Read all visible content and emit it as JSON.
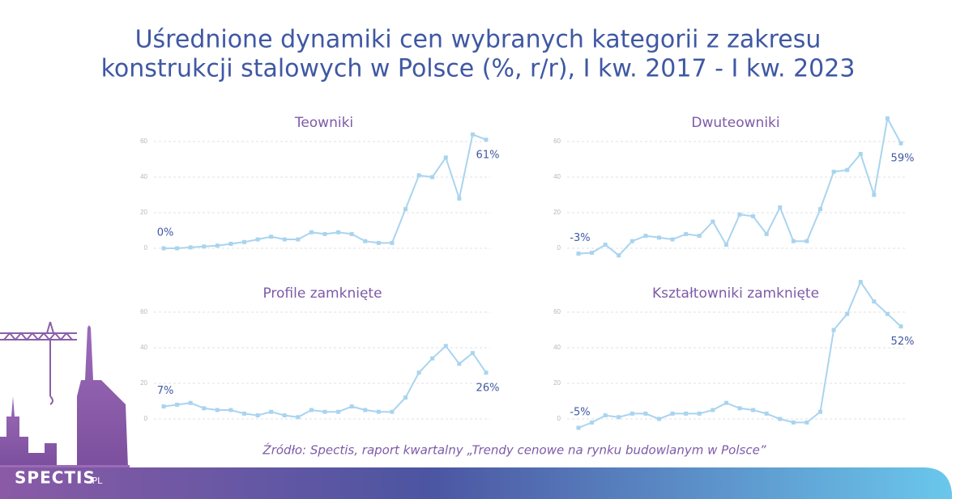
{
  "title": [
    "Uśrednione dynamiki cen wybranych kategorii z zakresu",
    "konstrukcji stalowych w Polsce (%, r/r), I kw. 2017 - I kw. 2023"
  ],
  "source": "Źródło: Spectis, raport kwartalny „Trendy cenowe na rynku budowlanym w Polsce”",
  "logo": "SPECTIS",
  "logo_domain": ".PL",
  "chart_data": [
    {
      "type": "line",
      "title": "Teowniki",
      "color": "#a9d4ef",
      "grid": true,
      "values": [
        0,
        0,
        0.5,
        1,
        1.5,
        2.5,
        3.5,
        5,
        6.5,
        5,
        5,
        9,
        8,
        9,
        8,
        4,
        3,
        3,
        22,
        41,
        40,
        51,
        28,
        64,
        61
      ],
      "value_labels": [
        "0%",
        null,
        null,
        null,
        null,
        null,
        null,
        null,
        null,
        null,
        null,
        null,
        null,
        null,
        null,
        null,
        null,
        null,
        null,
        null,
        null,
        null,
        null,
        null,
        "61%"
      ],
      "ylim": [
        -6,
        66
      ],
      "yticks": [
        0,
        20,
        40,
        60
      ]
    },
    {
      "type": "line",
      "title": "Dwuteowniki",
      "color": "#a9d4ef",
      "grid": true,
      "values": [
        -3,
        -2.5,
        2,
        -4,
        4,
        7,
        6,
        5,
        8,
        7,
        15,
        2,
        19,
        18,
        8,
        23,
        4,
        4,
        22,
        43,
        44,
        53,
        30,
        73,
        59
      ],
      "value_labels": [
        "-3%",
        null,
        null,
        null,
        null,
        null,
        null,
        null,
        null,
        null,
        null,
        null,
        null,
        null,
        null,
        null,
        null,
        null,
        null,
        null,
        null,
        null,
        null,
        null,
        "59%"
      ],
      "ylim": [
        -6,
        75
      ],
      "yticks": [
        0,
        20,
        40,
        60
      ]
    },
    {
      "type": "line",
      "title": "Profile zamknięte",
      "color": "#a9d4ef",
      "grid": true,
      "values": [
        7,
        8,
        9,
        6,
        5,
        5,
        3,
        2,
        4,
        2,
        1,
        5,
        4,
        4,
        7,
        5,
        4,
        4,
        12,
        26,
        34,
        41,
        31,
        37,
        26
      ],
      "value_labels": [
        "7%",
        null,
        null,
        null,
        null,
        null,
        null,
        null,
        null,
        null,
        null,
        null,
        null,
        null,
        null,
        null,
        null,
        null,
        null,
        null,
        null,
        null,
        null,
        null,
        "26%"
      ],
      "ylim": [
        -6,
        62
      ],
      "yticks": [
        0,
        20,
        40,
        60
      ]
    },
    {
      "type": "line",
      "title": "Kształtowniki zamknięte",
      "color": "#a9d4ef",
      "grid": true,
      "values": [
        -5,
        -2,
        2,
        1,
        3,
        3,
        0,
        3,
        3,
        3,
        5,
        9,
        6,
        5,
        3,
        0,
        -2,
        -2,
        4,
        50,
        59,
        77,
        66,
        59,
        52
      ],
      "value_labels": [
        "-5%",
        null,
        null,
        null,
        null,
        null,
        null,
        null,
        null,
        null,
        null,
        null,
        null,
        null,
        null,
        null,
        null,
        null,
        null,
        null,
        null,
        null,
        null,
        null,
        "52%"
      ],
      "ylim": [
        -6,
        78
      ],
      "yticks": [
        0,
        20,
        40,
        60
      ]
    }
  ]
}
